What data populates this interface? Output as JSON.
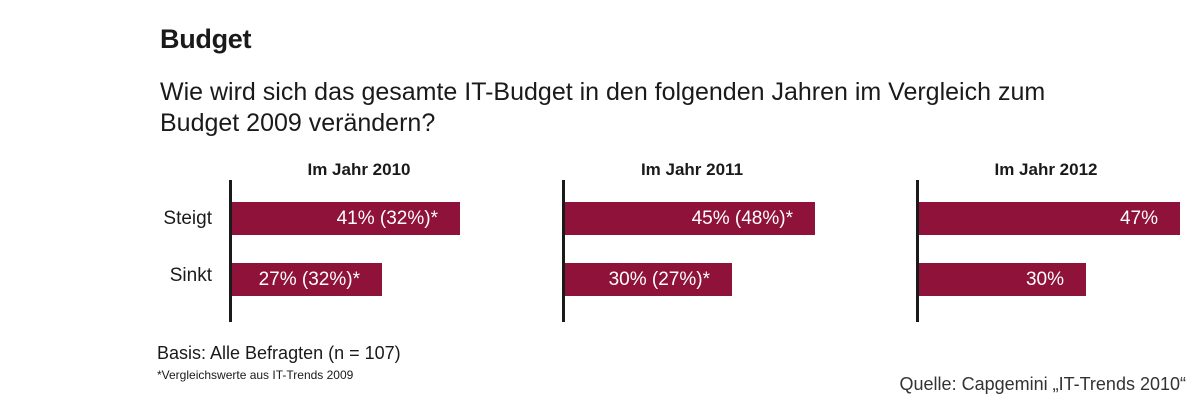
{
  "header": {
    "title": "Budget",
    "question": "Wie wird sich das gesamte IT-Budget in den folgenden Jahren im Vergleich zum Budget 2009 verändern?"
  },
  "chart_data": {
    "type": "bar",
    "orientation": "horizontal",
    "categories": [
      "Steigt",
      "Sinkt"
    ],
    "bar_color": "#8e1239",
    "panels": [
      {
        "title": "Im Jahr 2010",
        "values": [
          41,
          27
        ],
        "labels": [
          "41% (32%)*",
          "27% (32%)*"
        ]
      },
      {
        "title": "Im Jahr 2011",
        "values": [
          45,
          30
        ],
        "labels": [
          "45% (48%)*",
          "30% (27%)*"
        ]
      },
      {
        "title": "Im Jahr 2012",
        "values": [
          47,
          30
        ],
        "labels": [
          "47%",
          "30%"
        ]
      }
    ]
  },
  "footer": {
    "basis": "Basis: Alle Befragten (n = 107)",
    "footnote": "*Vergleichswerte aus IT-Trends 2009",
    "source": "Quelle: Capgemini „IT-Trends 2010“"
  }
}
